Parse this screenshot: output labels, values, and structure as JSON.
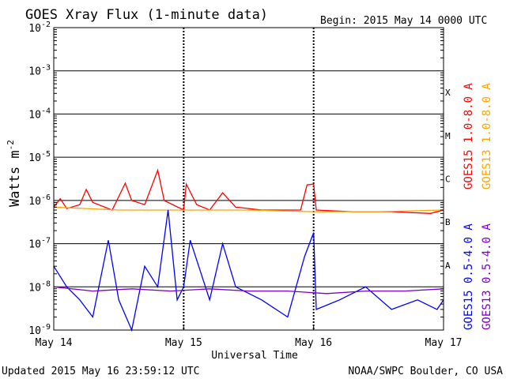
{
  "chart_data": {
    "type": "line",
    "title": "GOES Xray Flux (1-minute data)",
    "begin_label": "Begin:  2015 May 14 0000 UTC",
    "ylabel": "Watts m",
    "ylabel_sup": "-2",
    "xlabel": "Universal Time",
    "footer_left": "Updated 2015 May 16 23:59:12 UTC",
    "footer_right": "NOAA/SWPC Boulder, CO USA",
    "y_scale": "log",
    "ylim": [
      1e-09,
      0.01
    ],
    "y_ticks": [
      {
        "value": 0.01,
        "label": "10",
        "exp": "-2"
      },
      {
        "value": 0.001,
        "label": "10",
        "exp": "-3"
      },
      {
        "value": 0.0001,
        "label": "10",
        "exp": "-4"
      },
      {
        "value": 1e-05,
        "label": "10",
        "exp": "-5"
      },
      {
        "value": 1e-06,
        "label": "10",
        "exp": "-6"
      },
      {
        "value": 1e-07,
        "label": "10",
        "exp": "-7"
      },
      {
        "value": 1e-08,
        "label": "10",
        "exp": "-8"
      },
      {
        "value": 1e-09,
        "label": "10",
        "exp": "-9"
      }
    ],
    "x_range_days": [
      0,
      3
    ],
    "x_ticks": [
      {
        "day": 0,
        "label": "May 14"
      },
      {
        "day": 1,
        "label": "May 15"
      },
      {
        "day": 2,
        "label": "May 16"
      },
      {
        "day": 3,
        "label": "May 17"
      }
    ],
    "flare_classes": [
      {
        "label": "X",
        "flux": 0.000316
      },
      {
        "label": "M",
        "flux": 3.16e-05
      },
      {
        "label": "C",
        "flux": 3.16e-06
      },
      {
        "label": "B",
        "flux": 3.16e-07
      },
      {
        "label": "A",
        "flux": 3.16e-08
      }
    ],
    "grid": "horizontal at each decade",
    "legend_placement": "right, vertical",
    "series": [
      {
        "name": "GOES15 1.0-8.0 A",
        "color": "#ff0000",
        "points": [
          [
            0,
            7e-07
          ],
          [
            0.05,
            1.1e-06
          ],
          [
            0.1,
            6.5e-07
          ],
          [
            0.2,
            8e-07
          ],
          [
            0.25,
            1.8e-06
          ],
          [
            0.3,
            9e-07
          ],
          [
            0.45,
            6e-07
          ],
          [
            0.55,
            2.5e-06
          ],
          [
            0.6,
            1e-06
          ],
          [
            0.7,
            8e-07
          ],
          [
            0.75,
            2e-06
          ],
          [
            0.8,
            5e-06
          ],
          [
            0.85,
            1e-06
          ],
          [
            1.0,
            6e-07
          ],
          [
            1.02,
            2.4e-06
          ],
          [
            1.1,
            8e-07
          ],
          [
            1.2,
            6e-07
          ],
          [
            1.3,
            1.5e-06
          ],
          [
            1.4,
            7e-07
          ],
          [
            1.6,
            6e-07
          ],
          [
            1.9,
            6e-07
          ],
          [
            1.95,
            2.3e-06
          ],
          [
            2.0,
            2.4e-06
          ],
          [
            2.02,
            6e-07
          ],
          [
            2.3,
            5.5e-07
          ],
          [
            2.6,
            5.5e-07
          ],
          [
            2.9,
            5e-07
          ],
          [
            3.0,
            6e-07
          ]
        ]
      },
      {
        "name": "GOES13 1.0-8.0 A",
        "color": "#ffa500",
        "points": [
          [
            0,
            7e-07
          ],
          [
            0.5,
            6e-07
          ],
          [
            1.0,
            6e-07
          ],
          [
            1.5,
            6e-07
          ],
          [
            2.0,
            5.5e-07
          ],
          [
            2.5,
            5.5e-07
          ],
          [
            3.0,
            6e-07
          ]
        ]
      },
      {
        "name": "GOES15 0.5-4.0 A",
        "color": "#0000ff",
        "points": [
          [
            0,
            3e-08
          ],
          [
            0.1,
            1e-08
          ],
          [
            0.2,
            5e-09
          ],
          [
            0.3,
            2e-09
          ],
          [
            0.42,
            1.2e-07
          ],
          [
            0.5,
            5e-09
          ],
          [
            0.6,
            1e-09
          ],
          [
            0.7,
            3e-08
          ],
          [
            0.8,
            1e-08
          ],
          [
            0.88,
            6e-07
          ],
          [
            0.95,
            5e-09
          ],
          [
            1.0,
            1e-08
          ],
          [
            1.05,
            1.2e-07
          ],
          [
            1.2,
            5e-09
          ],
          [
            1.3,
            1e-07
          ],
          [
            1.4,
            1e-08
          ],
          [
            1.6,
            5e-09
          ],
          [
            1.8,
            2e-09
          ],
          [
            1.93,
            5e-08
          ],
          [
            2.0,
            1.8e-07
          ],
          [
            2.02,
            3e-09
          ],
          [
            2.2,
            5e-09
          ],
          [
            2.4,
            1e-08
          ],
          [
            2.6,
            3e-09
          ],
          [
            2.8,
            5e-09
          ],
          [
            2.95,
            3e-09
          ],
          [
            3.0,
            5e-09
          ]
        ]
      },
      {
        "name": "GOES13 0.5-4.0 A",
        "color": "#7a00c8",
        "points": [
          [
            0,
            1e-08
          ],
          [
            0.3,
            8e-09
          ],
          [
            0.6,
            9e-09
          ],
          [
            0.9,
            8e-09
          ],
          [
            1.2,
            9e-09
          ],
          [
            1.5,
            8e-09
          ],
          [
            1.8,
            8e-09
          ],
          [
            2.1,
            7e-09
          ],
          [
            2.4,
            8e-09
          ],
          [
            2.7,
            8e-09
          ],
          [
            3.0,
            9e-09
          ]
        ]
      }
    ]
  }
}
